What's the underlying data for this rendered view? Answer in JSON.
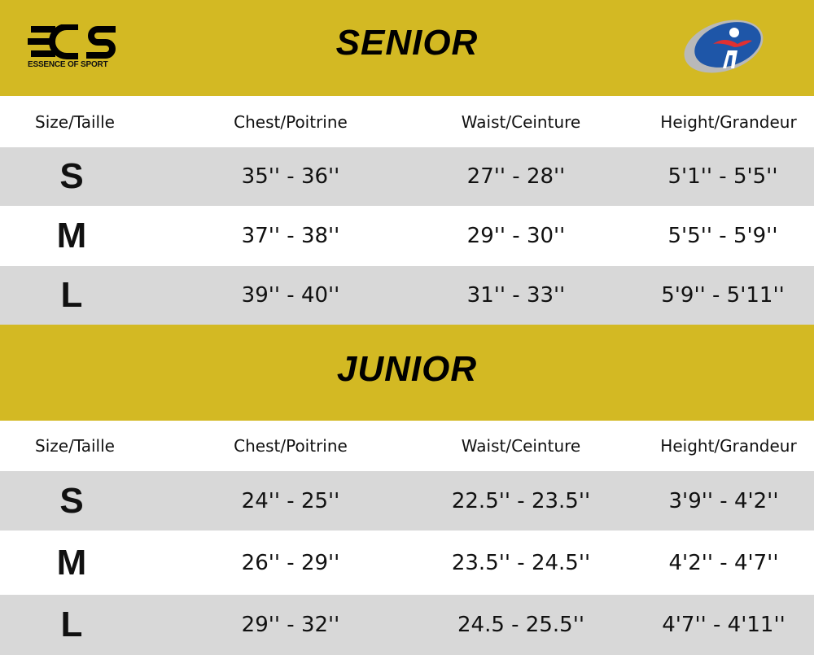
{
  "brand": {
    "logo_text": "EOS",
    "logo_tagline": "ESSENCE OF SPORT"
  },
  "colors": {
    "banner": "#d3b923",
    "row_alt": "#d8d8d8"
  },
  "headers": [
    "Size/Taille",
    "Chest/Poitrine",
    "Waist/Ceinture",
    "Height/Grandeur"
  ],
  "senior": {
    "title": "SENIOR",
    "rows": [
      [
        "S",
        "35'' - 36''",
        "27'' - 28''",
        "5'1'' - 5'5''"
      ],
      [
        "M",
        "37'' - 38''",
        "29'' - 30''",
        "5'5'' - 5'9''"
      ],
      [
        "L",
        "39'' - 40''",
        "31'' - 33''",
        "5'9'' - 5'11''"
      ]
    ]
  },
  "junior": {
    "title": "JUNIOR",
    "rows": [
      [
        "S",
        "24'' - 25''",
        "22.5'' - 23.5''",
        "3'9'' - 4'2''"
      ],
      [
        "M",
        "26'' - 29''",
        "23.5'' - 24.5''",
        "4'2'' - 4'7''"
      ],
      [
        "L",
        "29'' - 32''",
        "24.5 - 25.5''",
        "4'7'' - 4'11''"
      ]
    ]
  }
}
